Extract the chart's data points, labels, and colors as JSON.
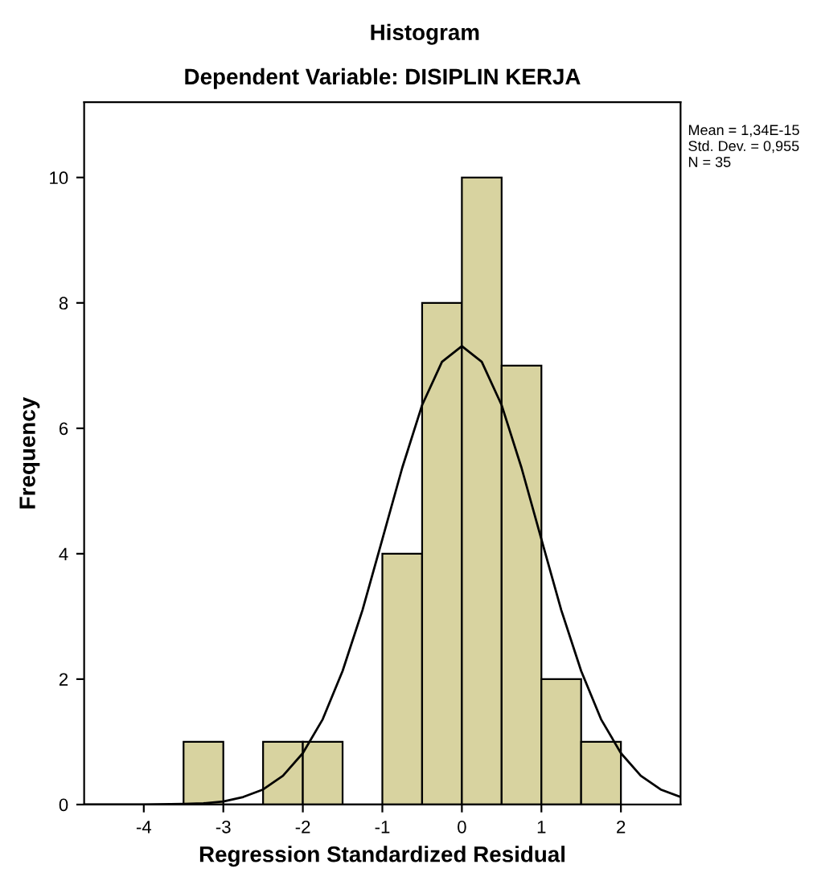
{
  "chart_data": {
    "type": "histogram",
    "title": "Histogram",
    "subtitle": "Dependent Variable: DISIPLIN KERJA",
    "xlabel": "Regression Standardized Residual",
    "ylabel": "Frequency",
    "bins": [
      -3.5,
      -3,
      -2.5,
      -2,
      -1.5,
      -1,
      -0.5,
      0,
      0.5,
      1,
      1.5,
      2
    ],
    "values": [
      1,
      0,
      1,
      1,
      0,
      4,
      8,
      10,
      7,
      2,
      1
    ],
    "color": "#d8d3a0",
    "series": [
      {
        "type": "line",
        "color": "#000000",
        "x": [
          -4.75,
          -4,
          -3.5,
          -3.25,
          -3,
          -2.75,
          -2.5,
          -2.25,
          -2,
          -1.75,
          -1.5,
          -1.25,
          -1,
          -0.75,
          -0.5,
          -0.25,
          0,
          0.25,
          0.5,
          0.75,
          1,
          1.25,
          1.5,
          1.75,
          2,
          2.25,
          2.5,
          2.75
        ],
        "values": [
          0,
          0,
          0.01,
          0.02,
          0.05,
          0.12,
          0.24,
          0.46,
          0.82,
          1.36,
          2.13,
          3.1,
          4.23,
          5.37,
          6.37,
          7.06,
          7.31,
          7.06,
          6.37,
          5.37,
          4.23,
          3.1,
          2.13,
          1.36,
          0.82,
          0.46,
          0.24,
          0.12
        ]
      }
    ],
    "xlim": [
      -4.75,
      2.75
    ],
    "xticks": [
      -4,
      -3,
      -2,
      -1,
      0,
      1,
      2
    ],
    "ylim": [
      0,
      11.2
    ],
    "yticks": [
      0,
      2,
      4,
      6,
      8,
      10
    ],
    "annotations": [
      "Mean = 1,34E-15",
      "Std. Dev. = 0,955",
      "N = 35"
    ],
    "grid": false,
    "legend": false
  }
}
